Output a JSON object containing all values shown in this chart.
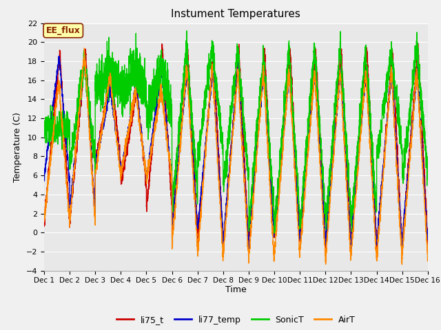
{
  "title": "Instument Temperatures",
  "ylabel": "Temperature (C)",
  "xlabel": "Time",
  "ylim": [
    -4,
    22
  ],
  "yticks": [
    -4,
    -2,
    0,
    2,
    4,
    6,
    8,
    10,
    12,
    14,
    16,
    18,
    20,
    22
  ],
  "fig_bg": "#f0f0f0",
  "plot_bg": "#e8e8e8",
  "line_colors": {
    "li75_t": "#cc0000",
    "li77_temp": "#0000cc",
    "SonicT": "#00cc00",
    "AirT": "#ff8800"
  },
  "line_width": 1.0,
  "annotation_text": "EE_flux",
  "annotation_bg": "#ffffaa",
  "annotation_border": "#882200",
  "n_days": 15,
  "points_per_day": 288
}
